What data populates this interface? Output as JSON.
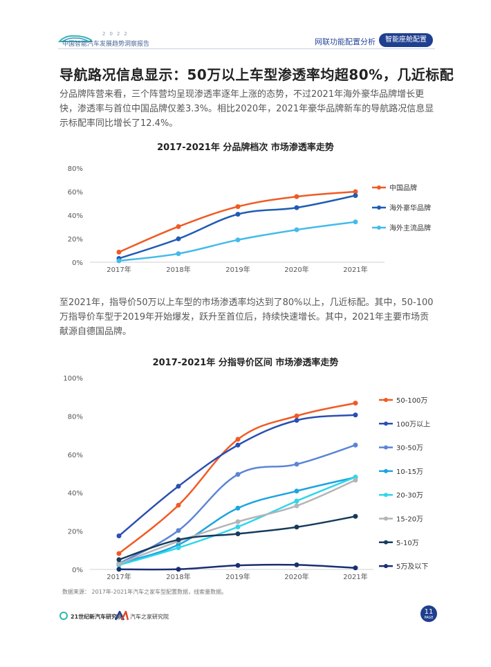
{
  "header": {
    "logo_text": "中国智能汽车发展趋势洞察报告",
    "logo_year": "2022",
    "section_link": "网联功能配置分析",
    "section_button": "智能座舱配置"
  },
  "title": "导航路况信息显示：50万以上车型渗透率均超80%，几近标配",
  "paragraph1": "分品牌阵营来看，三个阵营均呈现渗透率逐年上涨的态势，不过2021年海外豪华品牌增长更快，渗透率与首位中国品牌仅差3.3%。相比2020年，2021年豪华品牌新车的导航路况信息显示标配率同比增长了12.4%。",
  "paragraph2": "至2021年，指导价50万以上车型的市场渗透率均达到了80%以上，几近标配。其中，50-100万指导价车型于2019年开始爆发，跃升至首位后，持续快速增长。其中，2021年主要市场贡献源自德国品牌。",
  "source": "数据来源： 2017年-2021年汽车之家车型配置数据，线索量数据。",
  "footer": {
    "logo1": "21世纪新汽车研究院",
    "logo2": "汽车之家研究院",
    "page_number": "11",
    "page_label": "PAGE"
  },
  "chart_data": [
    {
      "type": "line",
      "title": "2017-2021年 分品牌档次 市场渗透率走势",
      "categories": [
        "2017年",
        "2018年",
        "2019年",
        "2020年",
        "2021年"
      ],
      "y_ticks": [
        "0%",
        "20%",
        "40%",
        "60%",
        "80%"
      ],
      "ylim": [
        0,
        80
      ],
      "legend_position": "right",
      "series": [
        {
          "name": "中国品牌",
          "color": "#f05a23",
          "values": [
            8.6,
            30.3,
            47.3,
            55.8,
            60.0
          ]
        },
        {
          "name": "海外豪华品牌",
          "color": "#1f5cb4",
          "values": [
            3.2,
            19.9,
            40.8,
            46.4,
            56.7
          ]
        },
        {
          "name": "海外主流品牌",
          "color": "#44bbea",
          "values": [
            1.2,
            7.3,
            19.0,
            27.6,
            34.3
          ]
        }
      ]
    },
    {
      "type": "line",
      "title": "2017-2021年 分指导价区间 市场渗透率走势",
      "categories": [
        "2017年",
        "2018年",
        "2019年",
        "2020年",
        "2021年"
      ],
      "y_ticks": [
        "0%",
        "20%",
        "40%",
        "60%",
        "80%",
        "100%"
      ],
      "ylim": [
        0,
        100
      ],
      "legend_position": "right",
      "series": [
        {
          "name": "50-100万",
          "color": "#f05a23",
          "values": [
            8.3,
            33.5,
            67.9,
            80.1,
            86.8
          ]
        },
        {
          "name": "100万以上",
          "color": "#2a4fb0",
          "values": [
            17.5,
            43.4,
            64.9,
            77.8,
            80.6
          ]
        },
        {
          "name": "30-50万",
          "color": "#5b85d6",
          "values": [
            3.1,
            20.3,
            49.6,
            54.9,
            64.9
          ]
        },
        {
          "name": "10-15万",
          "color": "#1ba4e0",
          "values": [
            3.1,
            12.9,
            32.0,
            40.9,
            48.1
          ]
        },
        {
          "name": "20-30万",
          "color": "#2fd6ea",
          "values": [
            2.3,
            11.3,
            22.2,
            35.7,
            48.2
          ]
        },
        {
          "name": "15-20万",
          "color": "#b4b4b8",
          "values": [
            2.9,
            14.7,
            24.9,
            33.2,
            46.6
          ]
        },
        {
          "name": "5-10万",
          "color": "#173a5c",
          "values": [
            5.1,
            15.5,
            18.6,
            22.1,
            27.7
          ]
        },
        {
          "name": "5万及以下",
          "color": "#1a2e74",
          "values": [
            0.1,
            0.1,
            2.1,
            2.4,
            0.8
          ]
        }
      ]
    }
  ]
}
